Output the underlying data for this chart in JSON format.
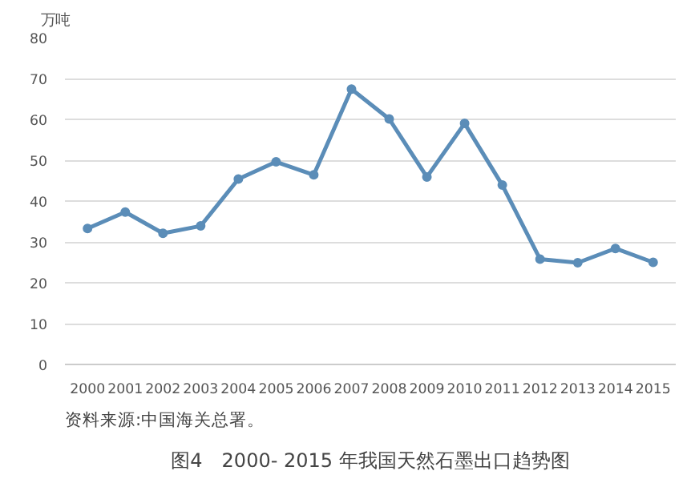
{
  "chart_data": {
    "type": "line",
    "title": "图4　2000- 2015 年我国天然石墨出口趋势图",
    "ylabel": "万吨",
    "annotations": [
      "资料来源:中国海关总署。"
    ],
    "categories": [
      "2000",
      "2001",
      "2002",
      "2003",
      "2004",
      "2005",
      "2006",
      "2007",
      "2008",
      "2009",
      "2010",
      "2011",
      "2012",
      "2013",
      "2014",
      "2015"
    ],
    "series": [
      {
        "color": "#5b8db8",
        "values": [
          33.3,
          37.3,
          32.1,
          33.9,
          45.4,
          49.6,
          46.4,
          67.4,
          60.1,
          45.9,
          59.0,
          43.9,
          25.8,
          24.9,
          28.4,
          25.0
        ]
      }
    ],
    "ylim": [
      0,
      80
    ],
    "yticks": [
      0,
      10,
      20,
      30,
      40,
      50,
      60,
      70,
      80
    ],
    "grid": "y",
    "marker": "circle",
    "line_style": "solid"
  }
}
